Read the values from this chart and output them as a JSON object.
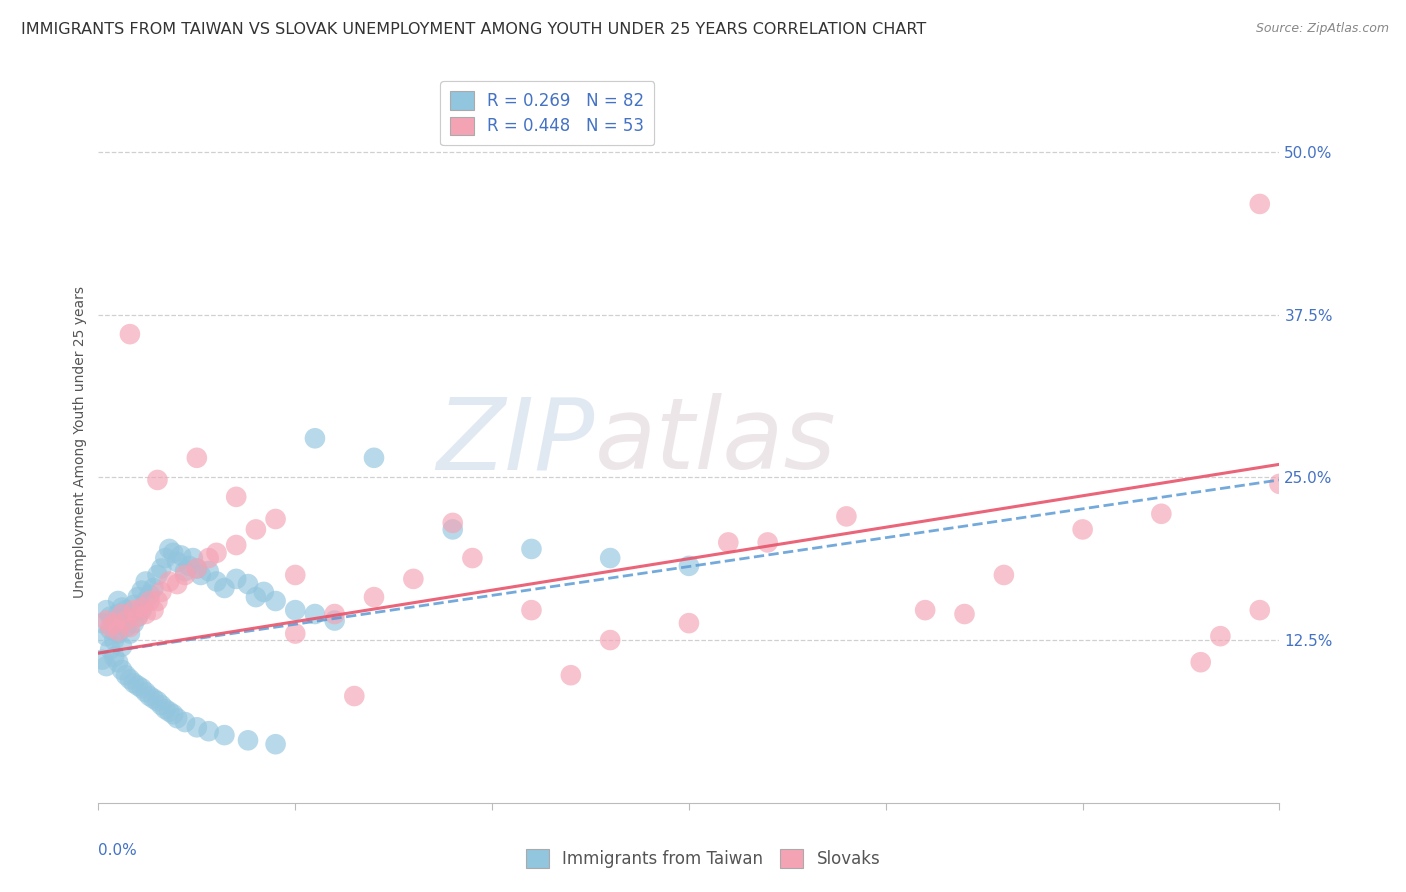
{
  "title": "IMMIGRANTS FROM TAIWAN VS SLOVAK UNEMPLOYMENT AMONG YOUTH UNDER 25 YEARS CORRELATION CHART",
  "source": "Source: ZipAtlas.com",
  "ylabel": "Unemployment Among Youth under 25 years",
  "ytick_labels": [
    "12.5%",
    "25.0%",
    "37.5%",
    "50.0%"
  ],
  "xlim": [
    0.0,
    0.3
  ],
  "ylim": [
    0.0,
    0.555
  ],
  "yticks": [
    0.125,
    0.25,
    0.375,
    0.5
  ],
  "legend1_label": "R = 0.269   N = 82",
  "legend2_label": "R = 0.448   N = 53",
  "color_blue": "#92c5de",
  "color_pink": "#f4a3b5",
  "line_blue": "#5b9bd5",
  "line_pink": "#e8546a",
  "watermark_zip": "ZIP",
  "watermark_atlas": "atlas",
  "background_color": "#ffffff",
  "grid_color": "#d0d0d0",
  "title_fontsize": 11.5,
  "axis_label_fontsize": 10,
  "tick_fontsize": 11,
  "legend_fontsize": 12,
  "blue_line_x0": 0.0,
  "blue_line_y0": 0.115,
  "blue_line_x1": 0.3,
  "blue_line_y1": 0.248,
  "pink_line_x0": 0.0,
  "pink_line_y0": 0.115,
  "pink_line_x1": 0.3,
  "pink_line_y1": 0.26,
  "blue_x": [
    0.001,
    0.002,
    0.002,
    0.003,
    0.003,
    0.004,
    0.004,
    0.005,
    0.005,
    0.005,
    0.006,
    0.006,
    0.006,
    0.007,
    0.007,
    0.008,
    0.008,
    0.009,
    0.009,
    0.01,
    0.01,
    0.011,
    0.011,
    0.012,
    0.012,
    0.013,
    0.014,
    0.015,
    0.016,
    0.017,
    0.018,
    0.019,
    0.02,
    0.021,
    0.022,
    0.023,
    0.024,
    0.025,
    0.026,
    0.028,
    0.03,
    0.032,
    0.035,
    0.038,
    0.04,
    0.042,
    0.045,
    0.05,
    0.055,
    0.06,
    0.001,
    0.002,
    0.003,
    0.004,
    0.005,
    0.006,
    0.007,
    0.008,
    0.009,
    0.01,
    0.011,
    0.012,
    0.013,
    0.014,
    0.015,
    0.016,
    0.017,
    0.018,
    0.019,
    0.02,
    0.022,
    0.025,
    0.028,
    0.032,
    0.038,
    0.045,
    0.055,
    0.07,
    0.09,
    0.11,
    0.13,
    0.15
  ],
  "blue_y": [
    0.138,
    0.128,
    0.148,
    0.133,
    0.143,
    0.125,
    0.138,
    0.13,
    0.145,
    0.155,
    0.12,
    0.14,
    0.15,
    0.135,
    0.148,
    0.13,
    0.145,
    0.138,
    0.152,
    0.143,
    0.158,
    0.148,
    0.163,
    0.155,
    0.17,
    0.16,
    0.165,
    0.175,
    0.18,
    0.188,
    0.195,
    0.192,
    0.185,
    0.19,
    0.178,
    0.182,
    0.188,
    0.18,
    0.175,
    0.178,
    0.17,
    0.165,
    0.172,
    0.168,
    0.158,
    0.162,
    0.155,
    0.148,
    0.145,
    0.14,
    0.11,
    0.105,
    0.118,
    0.112,
    0.108,
    0.102,
    0.098,
    0.095,
    0.092,
    0.09,
    0.088,
    0.085,
    0.082,
    0.08,
    0.078,
    0.075,
    0.072,
    0.07,
    0.068,
    0.065,
    0.062,
    0.058,
    0.055,
    0.052,
    0.048,
    0.045,
    0.28,
    0.265,
    0.21,
    0.195,
    0.188,
    0.182
  ],
  "pink_x": [
    0.002,
    0.003,
    0.004,
    0.005,
    0.006,
    0.007,
    0.008,
    0.009,
    0.01,
    0.011,
    0.012,
    0.013,
    0.014,
    0.015,
    0.016,
    0.018,
    0.02,
    0.022,
    0.025,
    0.028,
    0.03,
    0.035,
    0.04,
    0.045,
    0.05,
    0.06,
    0.07,
    0.08,
    0.095,
    0.11,
    0.13,
    0.15,
    0.17,
    0.19,
    0.21,
    0.23,
    0.25,
    0.27,
    0.285,
    0.295,
    0.008,
    0.015,
    0.025,
    0.035,
    0.05,
    0.065,
    0.09,
    0.12,
    0.16,
    0.22,
    0.28,
    0.295,
    0.3
  ],
  "pink_y": [
    0.14,
    0.135,
    0.138,
    0.132,
    0.145,
    0.14,
    0.135,
    0.148,
    0.143,
    0.15,
    0.145,
    0.155,
    0.148,
    0.155,
    0.162,
    0.17,
    0.168,
    0.175,
    0.18,
    0.188,
    0.192,
    0.198,
    0.21,
    0.218,
    0.175,
    0.145,
    0.158,
    0.172,
    0.188,
    0.148,
    0.125,
    0.138,
    0.2,
    0.22,
    0.148,
    0.175,
    0.21,
    0.222,
    0.128,
    0.148,
    0.36,
    0.248,
    0.265,
    0.235,
    0.13,
    0.082,
    0.215,
    0.098,
    0.2,
    0.145,
    0.108,
    0.46,
    0.245
  ]
}
